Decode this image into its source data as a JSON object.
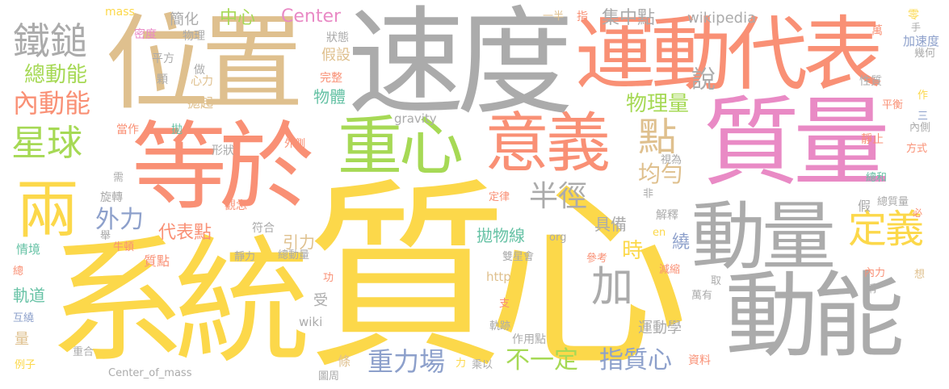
{
  "palette": {
    "yellow": "#FCD84A",
    "gray": "#ABABAB",
    "salmon": "#F99075",
    "tan": "#DFC08E",
    "pink": "#E98AC5",
    "green": "#A6D955",
    "blue": "#8DA0CB",
    "teal": "#66C2A5"
  },
  "words": [
    {
      "text": "質心",
      "color": "yellow"
    },
    {
      "text": "系統",
      "color": "yellow"
    },
    {
      "text": "速度",
      "color": "gray"
    },
    {
      "text": "位置",
      "color": "tan"
    },
    {
      "text": "質量",
      "color": "pink"
    },
    {
      "text": "等於",
      "color": "salmon"
    },
    {
      "text": "運動代表",
      "color": "salmon"
    },
    {
      "text": "動能",
      "color": "gray"
    },
    {
      "text": "動量",
      "color": "gray"
    },
    {
      "text": "重心",
      "color": "green"
    },
    {
      "text": "意義",
      "color": "salmon"
    },
    {
      "text": "兩",
      "color": "yellow"
    },
    {
      "text": "鐵鎚",
      "color": "gray"
    },
    {
      "text": "星球",
      "color": "green"
    },
    {
      "text": "點",
      "color": "tan"
    },
    {
      "text": "定義",
      "color": "yellow"
    },
    {
      "text": "加",
      "color": "gray"
    },
    {
      "text": "總動能",
      "color": "green"
    },
    {
      "text": "內動能",
      "color": "salmon"
    },
    {
      "text": "半徑",
      "color": "gray"
    },
    {
      "text": "均勻",
      "color": "tan"
    },
    {
      "text": "外力",
      "color": "blue"
    },
    {
      "text": "重力場",
      "color": "blue"
    },
    {
      "text": "不一定",
      "color": "green"
    },
    {
      "text": "指質心",
      "color": "blue"
    },
    {
      "text": "物理量",
      "color": "green"
    },
    {
      "text": "說",
      "color": "gray"
    },
    {
      "text": "集中點",
      "color": "gray"
    },
    {
      "text": "中心",
      "color": "green"
    },
    {
      "text": "Center",
      "color": "pink"
    },
    {
      "text": "wikipedia",
      "color": "gray"
    },
    {
      "text": "mass",
      "color": "yellow"
    },
    {
      "text": "簡化",
      "color": "gray"
    },
    {
      "text": "密度",
      "color": "pink"
    },
    {
      "text": "物理",
      "color": "gray"
    },
    {
      "text": "狀態",
      "color": "gray"
    },
    {
      "text": "假設",
      "color": "tan"
    },
    {
      "text": "平方",
      "color": "gray"
    },
    {
      "text": "做",
      "color": "gray"
    },
    {
      "text": "顆",
      "color": "gray"
    },
    {
      "text": "心力",
      "color": "tan"
    },
    {
      "text": "完整",
      "color": "salmon"
    },
    {
      "text": "物體",
      "color": "teal"
    },
    {
      "text": "拋起",
      "color": "tan"
    },
    {
      "text": "一半",
      "color": "tan"
    },
    {
      "text": "指",
      "color": "salmon"
    },
    {
      "text": "萬",
      "color": "salmon"
    },
    {
      "text": "零",
      "color": "yellow"
    },
    {
      "text": "手",
      "color": "gray"
    },
    {
      "text": "加速度",
      "color": "blue"
    },
    {
      "text": "幾何",
      "color": "gray"
    },
    {
      "text": "性質",
      "color": "gray"
    },
    {
      "text": "作",
      "color": "yellow"
    },
    {
      "text": "平衡",
      "color": "salmon"
    },
    {
      "text": "三",
      "color": "blue"
    },
    {
      "text": "內側",
      "color": "gray"
    },
    {
      "text": "靜止",
      "color": "salmon"
    },
    {
      "text": "方式",
      "color": "salmon"
    },
    {
      "text": "總和",
      "color": "teal"
    },
    {
      "text": "假",
      "color": "gray"
    },
    {
      "text": "總質量",
      "color": "gray"
    },
    {
      "text": "必",
      "color": "salmon"
    },
    {
      "text": "視為",
      "color": "gray"
    },
    {
      "text": "當作",
      "color": "salmon"
    },
    {
      "text": "拋",
      "color": "teal"
    },
    {
      "text": "gravity",
      "color": "gray"
    },
    {
      "text": "外側",
      "color": "salmon"
    },
    {
      "text": "形狀",
      "color": "gray"
    },
    {
      "text": "需",
      "color": "gray"
    },
    {
      "text": "旋轉",
      "color": "gray"
    },
    {
      "text": "觀念",
      "color": "salmon"
    },
    {
      "text": "定律",
      "color": "salmon"
    },
    {
      "text": "非",
      "color": "gray"
    },
    {
      "text": "解釋",
      "color": "gray"
    },
    {
      "text": "代表點",
      "color": "salmon"
    },
    {
      "text": "符合",
      "color": "gray"
    },
    {
      "text": "引力",
      "color": "tan"
    },
    {
      "text": "拋物線",
      "color": "teal"
    },
    {
      "text": "org",
      "color": "gray"
    },
    {
      "text": "具備",
      "color": "gray"
    },
    {
      "text": "時",
      "color": "yellow"
    },
    {
      "text": "en",
      "color": "yellow"
    },
    {
      "text": "繞",
      "color": "blue"
    },
    {
      "text": "質點",
      "color": "salmon"
    },
    {
      "text": "舉",
      "color": "gray"
    },
    {
      "text": "情境",
      "color": "teal"
    },
    {
      "text": "牛頓",
      "color": "salmon"
    },
    {
      "text": "靜力",
      "color": "gray"
    },
    {
      "text": "總動量",
      "color": "gray"
    },
    {
      "text": "雙星會",
      "color": "gray"
    },
    {
      "text": "參考",
      "color": "salmon"
    },
    {
      "text": "總",
      "color": "salmon"
    },
    {
      "text": "軌道",
      "color": "teal"
    },
    {
      "text": "功",
      "color": "salmon"
    },
    {
      "text": "受",
      "color": "gray"
    },
    {
      "text": "http",
      "color": "tan"
    },
    {
      "text": "減縮",
      "color": "salmon"
    },
    {
      "text": "內力",
      "color": "salmon"
    },
    {
      "text": "取",
      "color": "gray"
    },
    {
      "text": "稱",
      "color": "gray"
    },
    {
      "text": "想",
      "color": "tan"
    },
    {
      "text": "萬有",
      "color": "gray"
    },
    {
      "text": "互繞",
      "color": "blue"
    },
    {
      "text": "量",
      "color": "tan"
    },
    {
      "text": "wiki",
      "color": "gray"
    },
    {
      "text": "支",
      "color": "salmon"
    },
    {
      "text": "軌跡",
      "color": "gray"
    },
    {
      "text": "運動學",
      "color": "gray"
    },
    {
      "text": "作用點",
      "color": "gray"
    },
    {
      "text": "例子",
      "color": "yellow"
    },
    {
      "text": "重合",
      "color": "gray"
    },
    {
      "text": "Center_of_mass",
      "color": "gray"
    },
    {
      "text": "條",
      "color": "tan"
    },
    {
      "text": "力",
      "color": "yellow"
    },
    {
      "text": "乘以",
      "color": "gray"
    },
    {
      "text": "圖周",
      "color": "gray"
    },
    {
      "text": "資料",
      "color": "salmon"
    }
  ]
}
